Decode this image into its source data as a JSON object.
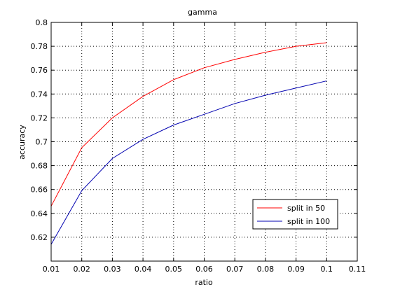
{
  "chart_data": {
    "type": "line",
    "title": "gamma",
    "xlabel": "ratio",
    "ylabel": "accuracy",
    "xlim": [
      0.01,
      0.11
    ],
    "ylim": [
      0.6,
      0.8
    ],
    "x_ticks": [
      "0.01",
      "0.02",
      "0.03",
      "0.04",
      "0.05",
      "0.06",
      "0.07",
      "0.08",
      "0.09",
      "0.1",
      "0.11"
    ],
    "y_ticks": [
      "0.62",
      "0.64",
      "0.66",
      "0.68",
      "0.7",
      "0.72",
      "0.74",
      "0.76",
      "0.78",
      "0.8"
    ],
    "grid": true,
    "legend_position": "bottom-right",
    "x": [
      0.01,
      0.02,
      0.03,
      0.04,
      0.05,
      0.06,
      0.07,
      0.08,
      0.09,
      0.1
    ],
    "series": [
      {
        "name": "split in 50",
        "color": "#ff0000",
        "values": [
          0.646,
          0.695,
          0.72,
          0.738,
          0.752,
          0.762,
          0.769,
          0.775,
          0.78,
          0.783
        ]
      },
      {
        "name": "split in 100",
        "color": "#0000b0",
        "values": [
          0.614,
          0.659,
          0.686,
          0.702,
          0.714,
          0.723,
          0.732,
          0.739,
          0.745,
          0.751
        ]
      }
    ]
  }
}
